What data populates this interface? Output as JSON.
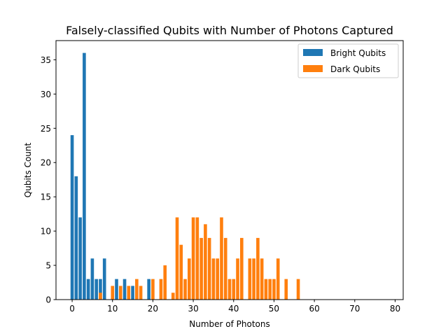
{
  "chart_data": {
    "type": "bar",
    "title": "Falsely-classified Qubits with Number of Photons Captured",
    "xlabel": "Number of Photons",
    "ylabel": "Qubits Count",
    "xlim": [
      -4,
      82
    ],
    "ylim": [
      0,
      37.8
    ],
    "xticks": [
      0,
      10,
      20,
      30,
      40,
      50,
      60,
      70,
      80
    ],
    "yticks": [
      0,
      5,
      10,
      15,
      20,
      25,
      30,
      35
    ],
    "grid": false,
    "legend_position": "top-right",
    "series": [
      {
        "name": "Bright Qubits",
        "color": "#1f77b4",
        "x": [
          0,
          1,
          2,
          3,
          4,
          5,
          6,
          7,
          8,
          11,
          13,
          15,
          19
        ],
        "values": [
          24,
          18,
          12,
          36,
          3,
          6,
          3,
          3,
          6,
          3,
          3,
          2,
          3
        ]
      },
      {
        "name": "Dark Qubits",
        "color": "#ff7f0e",
        "x": [
          7,
          10,
          12,
          14,
          16,
          17,
          20,
          22,
          23,
          25,
          26,
          27,
          28,
          29,
          30,
          31,
          32,
          33,
          34,
          35,
          36,
          37,
          38,
          39,
          40,
          41,
          42,
          44,
          45,
          46,
          47,
          48,
          49,
          50,
          51,
          53,
          56
        ],
        "values": [
          1,
          2,
          2,
          2,
          3,
          2,
          3,
          3,
          5,
          1,
          12,
          8,
          3,
          6,
          12,
          12,
          9,
          11,
          9,
          6,
          6,
          12,
          9,
          3,
          3,
          6,
          9,
          6,
          6,
          9,
          6,
          3,
          3,
          3,
          6,
          3,
          3
        ]
      }
    ]
  }
}
